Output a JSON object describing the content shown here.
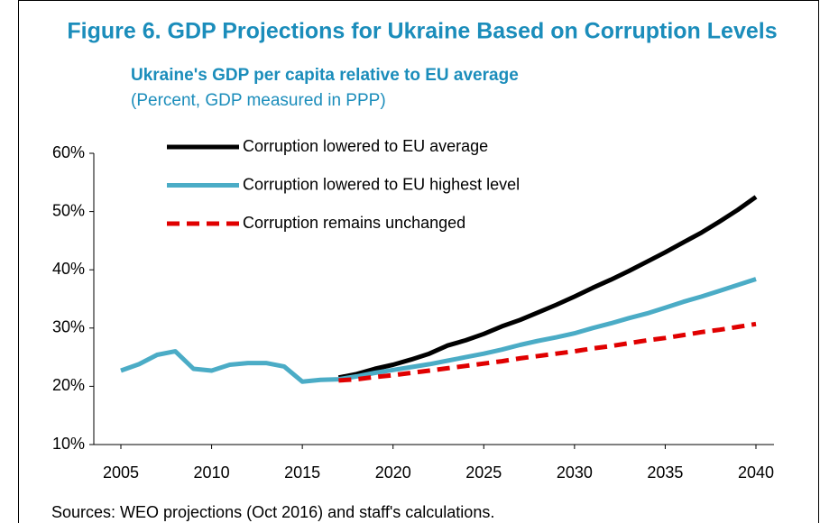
{
  "chart_data": {
    "type": "line",
    "title": "Figure 6. GDP Projections for Ukraine Based on Corruption Levels",
    "subtitle": "Ukraine's GDP per capita relative to EU average",
    "unit_note": "(Percent, GDP measured in PPP)",
    "source": "Sources: WEO projections (Oct 2016) and staff's calculations.",
    "x": [
      2005,
      2006,
      2007,
      2008,
      2009,
      2010,
      2011,
      2012,
      2013,
      2014,
      2015,
      2016,
      2017,
      2018,
      2019,
      2020,
      2021,
      2022,
      2023,
      2024,
      2025,
      2026,
      2027,
      2028,
      2029,
      2030,
      2031,
      2032,
      2033,
      2034,
      2035,
      2036,
      2037,
      2038,
      2039,
      2040
    ],
    "series": [
      {
        "name": "Corruption lowered to EU average",
        "color": "#000000",
        "dash": false,
        "values": [
          null,
          null,
          null,
          null,
          null,
          null,
          null,
          null,
          null,
          null,
          null,
          null,
          21.5,
          22.1,
          23.0,
          23.7,
          24.6,
          25.6,
          27.0,
          27.9,
          29.0,
          30.3,
          31.4,
          32.7,
          34.0,
          35.4,
          36.9,
          38.3,
          39.8,
          41.4,
          43.0,
          44.7,
          46.4,
          48.3,
          50.3,
          52.5
        ]
      },
      {
        "name": "Corruption lowered to EU highest level",
        "color": "#4bacc6",
        "dash": false,
        "values": [
          22.7,
          23.8,
          25.4,
          26.0,
          23.0,
          22.7,
          23.7,
          24.0,
          24.0,
          23.4,
          20.8,
          21.1,
          21.2,
          21.7,
          22.3,
          22.8,
          23.3,
          23.8,
          24.4,
          25.0,
          25.6,
          26.3,
          27.1,
          27.8,
          28.4,
          29.1,
          30.0,
          30.8,
          31.7,
          32.5,
          33.5,
          34.5,
          35.4,
          36.4,
          37.4,
          38.4
        ]
      },
      {
        "name": "Corruption remains unchanged",
        "color": "#e00000",
        "dash": true,
        "values": [
          null,
          null,
          null,
          null,
          null,
          null,
          null,
          null,
          null,
          null,
          null,
          null,
          21.0,
          21.2,
          21.6,
          21.9,
          22.3,
          22.7,
          23.1,
          23.5,
          23.9,
          24.3,
          24.8,
          25.2,
          25.6,
          26.0,
          26.5,
          26.9,
          27.4,
          27.9,
          28.3,
          28.8,
          29.3,
          29.7,
          30.2,
          30.7
        ]
      }
    ],
    "xlim": [
      2005,
      2040
    ],
    "xticks": [
      2005,
      2010,
      2015,
      2020,
      2025,
      2030,
      2035,
      2040
    ],
    "ylim": [
      10,
      60
    ],
    "yticks": [
      {
        "value": 10,
        "label": "10%"
      },
      {
        "value": 20,
        "label": "20%"
      },
      {
        "value": 30,
        "label": "30%"
      },
      {
        "value": 40,
        "label": "40%"
      },
      {
        "value": 50,
        "label": "50%"
      },
      {
        "value": 60,
        "label": "60%"
      }
    ],
    "grid": false,
    "legend": "upper left"
  }
}
